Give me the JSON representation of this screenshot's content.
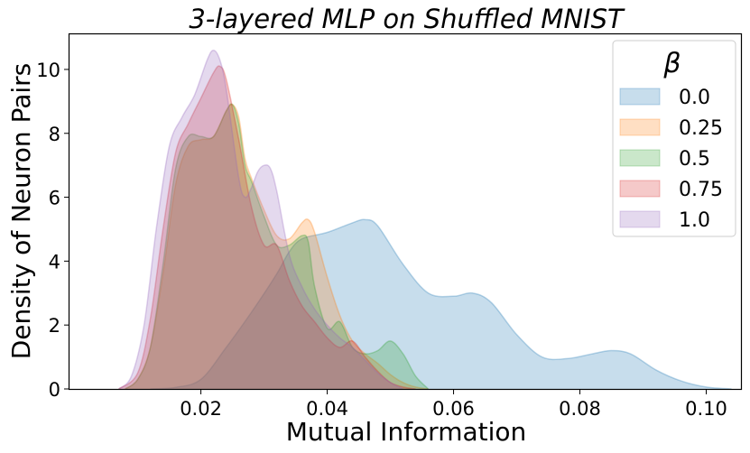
{
  "chart_data": {
    "type": "area",
    "title": "3-layered MLP on Shuffled MNIST",
    "xlabel": "Mutual Information",
    "ylabel": "Density of Neuron Pairs",
    "xlim": [
      -0.0008,
      0.1055
    ],
    "ylim": [
      0,
      11.1
    ],
    "xticks": [
      0.02,
      0.04,
      0.06,
      0.08,
      0.1
    ],
    "xtick_labels": [
      "0.02",
      "0.04",
      "0.06",
      "0.08",
      "0.10"
    ],
    "yticks": [
      0,
      2,
      4,
      6,
      8,
      10
    ],
    "ytick_labels": [
      "0",
      "2",
      "4",
      "6",
      "8",
      "10"
    ],
    "grid": false,
    "legend": {
      "title": "β",
      "placement": "top-right"
    },
    "series": [
      {
        "name": "0.0",
        "color": "#1f77b4",
        "x": [
          0.012,
          0.016,
          0.02,
          0.024,
          0.028,
          0.032,
          0.034,
          0.036,
          0.04,
          0.044,
          0.046,
          0.048,
          0.052,
          0.056,
          0.06,
          0.063,
          0.066,
          0.07,
          0.074,
          0.078,
          0.082,
          0.085,
          0.088,
          0.092,
          0.096,
          0.1,
          0.104
        ],
        "y": [
          0.0,
          0.05,
          0.3,
          1.3,
          2.4,
          3.6,
          4.3,
          4.7,
          4.9,
          5.2,
          5.3,
          5.1,
          3.9,
          3.0,
          2.9,
          3.0,
          2.7,
          1.7,
          1.0,
          0.95,
          1.1,
          1.2,
          1.1,
          0.6,
          0.25,
          0.06,
          0.0
        ]
      },
      {
        "name": "0.25",
        "color": "#ff7f0e",
        "x": [
          0.008,
          0.01,
          0.012,
          0.014,
          0.016,
          0.018,
          0.02,
          0.022,
          0.024,
          0.025,
          0.026,
          0.027,
          0.028,
          0.03,
          0.032,
          0.034,
          0.036,
          0.037,
          0.038,
          0.04,
          0.042,
          0.044,
          0.046,
          0.048,
          0.05,
          0.052,
          0.054,
          0.056
        ],
        "y": [
          0.0,
          0.3,
          1.3,
          3.6,
          6.4,
          7.6,
          7.8,
          7.9,
          8.7,
          8.9,
          8.5,
          7.2,
          6.6,
          5.6,
          4.8,
          4.7,
          5.2,
          5.3,
          4.9,
          3.5,
          2.3,
          1.5,
          1.1,
          0.8,
          0.45,
          0.2,
          0.06,
          0.0
        ]
      },
      {
        "name": "0.5",
        "color": "#2ca02c",
        "x": [
          0.008,
          0.01,
          0.012,
          0.014,
          0.016,
          0.018,
          0.02,
          0.022,
          0.024,
          0.025,
          0.026,
          0.027,
          0.028,
          0.03,
          0.032,
          0.034,
          0.036,
          0.037,
          0.038,
          0.04,
          0.042,
          0.044,
          0.046,
          0.048,
          0.05,
          0.052,
          0.054,
          0.056
        ],
        "y": [
          0.0,
          0.3,
          1.3,
          3.9,
          6.9,
          7.9,
          7.9,
          7.9,
          8.7,
          8.9,
          8.3,
          7.0,
          6.5,
          5.4,
          4.5,
          4.5,
          4.8,
          4.6,
          3.2,
          1.9,
          2.1,
          1.3,
          1.1,
          1.2,
          1.5,
          1.1,
          0.4,
          0.0
        ]
      },
      {
        "name": "0.75",
        "color": "#d62728",
        "x": [
          0.007,
          0.01,
          0.012,
          0.014,
          0.016,
          0.018,
          0.02,
          0.022,
          0.023,
          0.024,
          0.026,
          0.028,
          0.03,
          0.032,
          0.034,
          0.036,
          0.038,
          0.04,
          0.042,
          0.044,
          0.046,
          0.048,
          0.05,
          0.052,
          0.054
        ],
        "y": [
          0.0,
          0.5,
          2.2,
          5.0,
          7.4,
          8.3,
          9.1,
          9.9,
          10.1,
          9.7,
          7.8,
          5.7,
          4.5,
          4.5,
          3.4,
          2.6,
          2.1,
          1.6,
          1.3,
          1.5,
          1.0,
          0.55,
          0.2,
          0.06,
          0.0
        ]
      },
      {
        "name": "1.0",
        "color": "#9467bd",
        "x": [
          0.007,
          0.009,
          0.011,
          0.013,
          0.015,
          0.017,
          0.019,
          0.021,
          0.022,
          0.023,
          0.024,
          0.026,
          0.027,
          0.028,
          0.029,
          0.03,
          0.031,
          0.032,
          0.034,
          0.036,
          0.038,
          0.04,
          0.042,
          0.044,
          0.046,
          0.048,
          0.05,
          0.052
        ],
        "y": [
          0.0,
          0.4,
          2.0,
          5.1,
          7.6,
          8.5,
          9.2,
          10.3,
          10.6,
          10.3,
          9.4,
          6.6,
          6.0,
          6.3,
          6.8,
          7.0,
          6.9,
          6.2,
          4.2,
          3.2,
          2.5,
          2.0,
          1.6,
          1.3,
          0.9,
          0.5,
          0.2,
          0.0
        ]
      }
    ]
  }
}
